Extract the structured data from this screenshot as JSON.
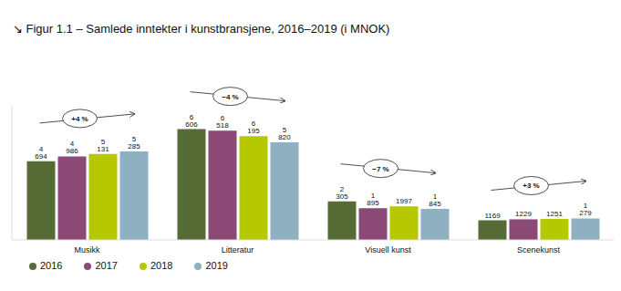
{
  "chart_data": {
    "type": "bar",
    "title": "↘ Figur 1.1 – Samlede inntekter i kunstbransjene, 2016–2019 (i MNOK)",
    "categories": [
      "Musikk",
      "Litteratur",
      "Visuell kunst",
      "Scenekunst"
    ],
    "series": [
      {
        "name": "2016",
        "color": "#566b35",
        "values": [
          4694,
          6606,
          2305,
          1169
        ],
        "value_labels": [
          "4 694",
          "6 606",
          "2 305",
          "1169"
        ]
      },
      {
        "name": "2017",
        "color": "#8b4a76",
        "values": [
          4986,
          6518,
          1895,
          1229
        ],
        "value_labels": [
          "4 986",
          "6 518",
          "1 895",
          "1229"
        ]
      },
      {
        "name": "2018",
        "color": "#b5c800",
        "values": [
          5131,
          6195,
          1997,
          1251
        ],
        "value_labels": [
          "5 131",
          "6 195",
          "1997",
          "1251"
        ]
      },
      {
        "name": "2019",
        "color": "#8fb0c0",
        "values": [
          5285,
          5820,
          1845,
          1279
        ],
        "value_labels": [
          "5 285",
          "5 820",
          "1 845",
          "1 279"
        ]
      }
    ],
    "ylim": [
      0,
      8000
    ],
    "tick_labels": "x",
    "grid": false,
    "data_labels": true,
    "legend": "bottom left",
    "annotations": [
      {
        "category": "Musikk",
        "text": "+4 %"
      },
      {
        "category": "Litteratur",
        "text": "−4 %"
      },
      {
        "category": "Visuell kunst",
        "text": "−7 %"
      },
      {
        "category": "Scenekunst",
        "text": "+3 %"
      }
    ]
  }
}
